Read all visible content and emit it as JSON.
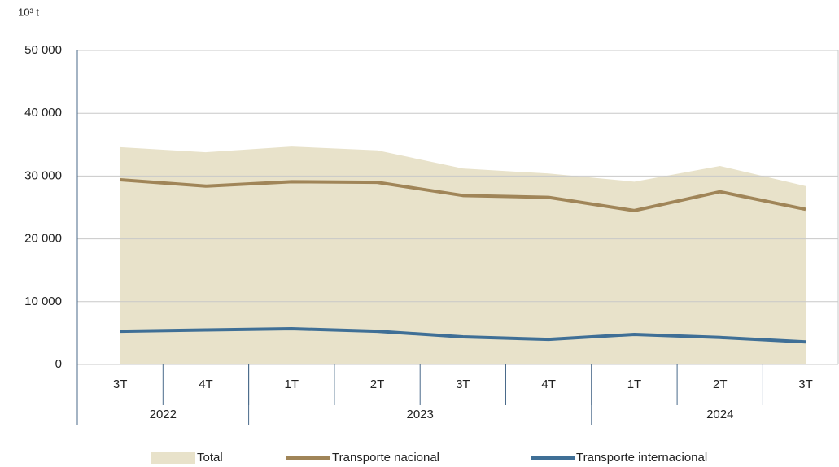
{
  "chart_data": {
    "type": "area_line",
    "unit_label": "10³ t",
    "categories": [
      "3T",
      "4T",
      "1T",
      "2T",
      "3T",
      "4T",
      "1T",
      "2T",
      "3T"
    ],
    "groups": [
      {
        "label": "2022",
        "span": 2
      },
      {
        "label": "2023",
        "span": 4
      },
      {
        "label": "2024",
        "span": 3
      }
    ],
    "series": [
      {
        "name": "Total",
        "color": "#e8e2ca",
        "kind": "area",
        "values": [
          34600,
          33800,
          34700,
          34100,
          31200,
          30400,
          29100,
          31600,
          28400
        ]
      },
      {
        "name": "Transporte nacional",
        "color": "#a08558",
        "kind": "line",
        "values": [
          29400,
          28400,
          29100,
          29000,
          26900,
          26600,
          24500,
          27500,
          24700
        ]
      },
      {
        "name": "Transporte internacional",
        "color": "#3f6f96",
        "kind": "line",
        "values": [
          5300,
          5500,
          5700,
          5300,
          4400,
          4000,
          4800,
          4300,
          3600
        ]
      }
    ],
    "ylim": [
      0,
      50000
    ],
    "yticks": [
      0,
      {
        "value": 10000,
        "label": "10 000"
      },
      {
        "value": 20000,
        "label": "20 000"
      },
      {
        "value": 30000,
        "label": "30 000"
      },
      {
        "value": 40000,
        "label": "40 000"
      },
      {
        "value": 50000,
        "label": "50 000"
      }
    ],
    "grid": true
  }
}
